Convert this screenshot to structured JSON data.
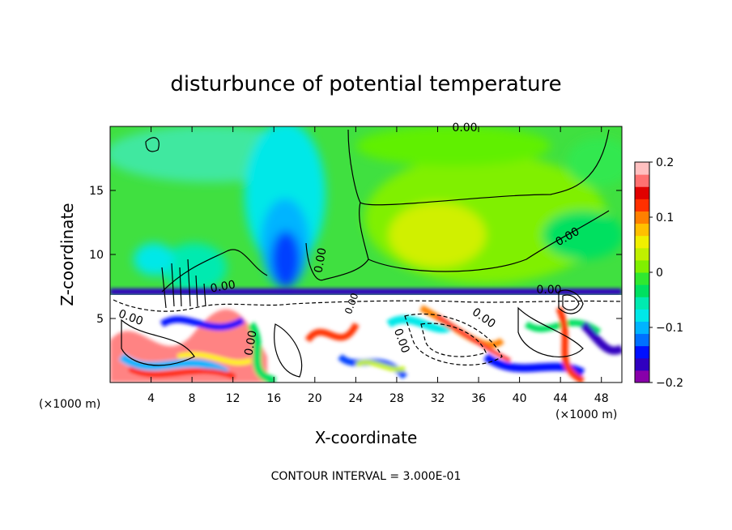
{
  "chart_data": {
    "type": "heatmap",
    "title": "disturbunce of potential temperature",
    "xlabel": "X-coordinate",
    "ylabel": "Z-coordinate",
    "x_unit_left": "(×1000 m)",
    "x_unit_right": "(×1000 m)",
    "footer": "CONTOUR INTERVAL = 3.000E-01",
    "xlim": [
      0,
      50
    ],
    "ylim": [
      0,
      20
    ],
    "x_ticks": [
      4,
      8,
      12,
      16,
      20,
      24,
      28,
      32,
      36,
      40,
      44,
      48
    ],
    "y_ticks": [
      5,
      10,
      15
    ],
    "x_tick_labels": [
      "4",
      "8",
      "12",
      "16",
      "20",
      "24",
      "28",
      "32",
      "36",
      "40",
      "44",
      "48"
    ],
    "y_tick_labels": [
      "5",
      "10",
      "15"
    ],
    "colorbar": {
      "range": [
        -0.2,
        0.2
      ],
      "tick_labels": [
        "0.2",
        "0.1",
        "0",
        "−0.1",
        "−0.2"
      ],
      "tick_values": [
        0.2,
        0.1,
        0,
        -0.1,
        -0.2
      ],
      "colors": [
        "#8800aa",
        "#3000c0",
        "#0010ff",
        "#0070ff",
        "#00b4ff",
        "#00e8e8",
        "#00eab0",
        "#00e060",
        "#30e830",
        "#80f000",
        "#c0f000",
        "#f0f000",
        "#ffc000",
        "#ff8000",
        "#ff3000",
        "#e00000",
        "#ff7070",
        "#ffc0c0"
      ]
    },
    "contour_labels": [
      "0.00",
      "0.00",
      "0.00",
      "0.00",
      "0.00",
      "0.00",
      "0.00",
      "0.00",
      "0.00",
      "0.00"
    ],
    "background_color": "#40e040"
  }
}
